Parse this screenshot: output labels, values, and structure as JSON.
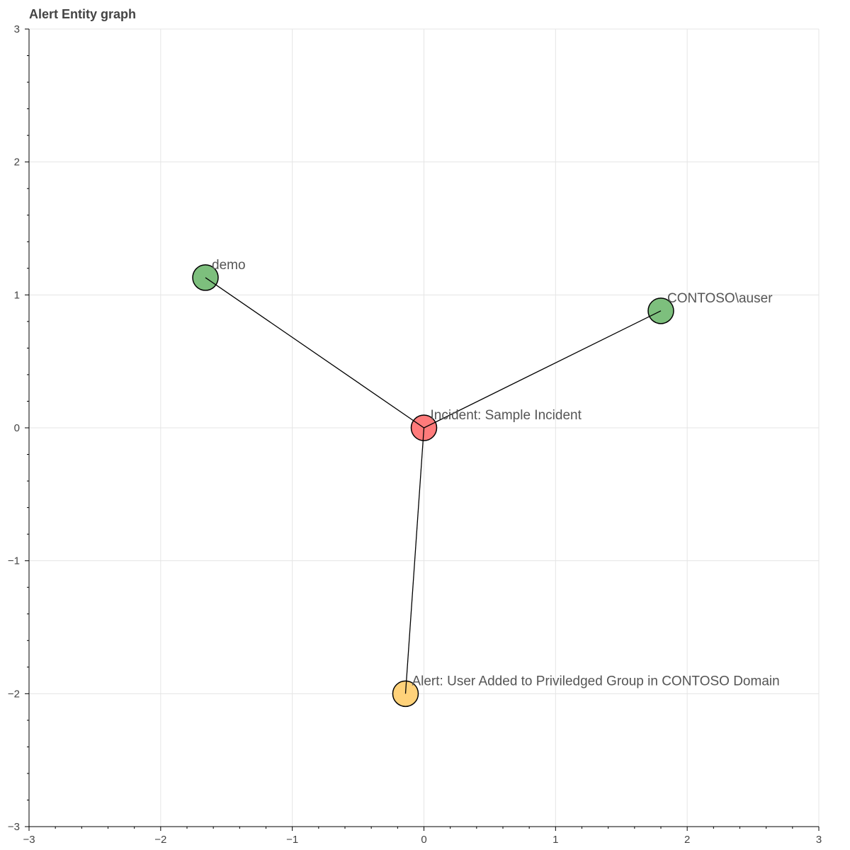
{
  "chart_data": {
    "type": "scatter",
    "title": "Alert Entity graph",
    "xlabel": "",
    "ylabel": "",
    "xlim": [
      -3,
      3
    ],
    "ylim": [
      -3,
      3
    ],
    "x_ticks": [
      "−3",
      "−2",
      "−1",
      "0",
      "1",
      "2",
      "3"
    ],
    "y_ticks": [
      "−3",
      "−2",
      "−1",
      "0",
      "1",
      "2",
      "3"
    ],
    "grid": true,
    "legend": "none",
    "nodes": [
      {
        "id": "demo",
        "label": "demo",
        "x": -1.66,
        "y": 1.13,
        "color": "#7dbf7d"
      },
      {
        "id": "auser",
        "label": "CONTOSO\\auser",
        "x": 1.8,
        "y": 0.88,
        "color": "#7dbf7d"
      },
      {
        "id": "incident",
        "label": "Incident: Sample Incident",
        "x": 0.0,
        "y": 0.0,
        "color": "#ff7b7b"
      },
      {
        "id": "alert",
        "label": "Alert: User Added to Priviledged Group in CONTOSO Domain",
        "x": -0.14,
        "y": -2.0,
        "color": "#ffd27a"
      }
    ],
    "edges": [
      [
        "incident",
        "demo"
      ],
      [
        "incident",
        "auser"
      ],
      [
        "incident",
        "alert"
      ]
    ]
  }
}
